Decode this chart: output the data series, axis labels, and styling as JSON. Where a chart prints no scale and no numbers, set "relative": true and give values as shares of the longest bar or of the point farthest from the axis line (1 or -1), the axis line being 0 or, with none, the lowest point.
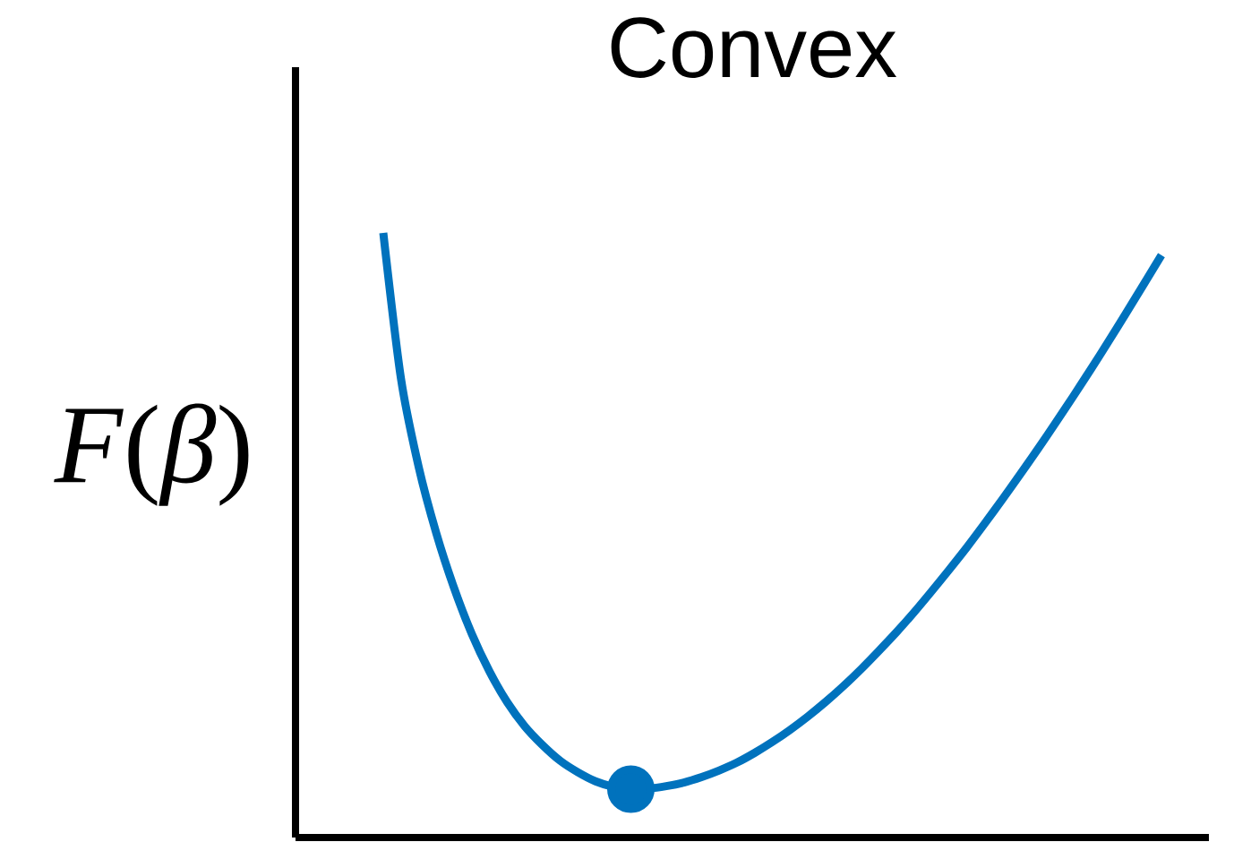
{
  "chart_data": {
    "type": "line",
    "title": "Convex",
    "ylabel": "*F*(*β*)",
    "relative": true,
    "categories": [
      null,
      null,
      null,
      null,
      null,
      null,
      null,
      null,
      null,
      null,
      null,
      null,
      null,
      null,
      null,
      null,
      null,
      null,
      null,
      null,
      null,
      null,
      null,
      null,
      null,
      null,
      null,
      null,
      null,
      null,
      null,
      null,
      null,
      null,
      null,
      null,
      null,
      null,
      null,
      null,
      null,
      null,
      null,
      null,
      null
    ],
    "series": [
      {
        "color": "#0072bd",
        "marker": "circle",
        "values": [
          null,
          null,
          null,
          null,
          null,
          null,
          null,
          null,
          null,
          null,
          null,
          null,
          null,
          null,
          0.08,
          null,
          null,
          null,
          null,
          null,
          null,
          null,
          null,
          null,
          null,
          null,
          null,
          null,
          null,
          null,
          null,
          null,
          null,
          null,
          null,
          null,
          null,
          null,
          null,
          null,
          null,
          null,
          null,
          null,
          null
        ]
      },
      {
        "color": "#0072bd",
        "values": [
          1.0,
          0.759,
          0.613,
          0.503,
          0.413,
          0.337,
          0.275,
          0.224,
          0.184,
          0.153,
          0.127,
          0.108,
          0.093,
          0.084,
          0.08,
          0.081,
          0.085,
          0.091,
          0.1,
          0.111,
          0.124,
          0.14,
          0.158,
          0.178,
          0.2,
          0.224,
          0.25,
          0.278,
          0.308,
          0.339,
          0.372,
          0.407,
          0.443,
          0.48,
          0.519,
          0.559,
          0.6,
          0.642,
          0.685,
          0.729,
          0.774,
          0.82,
          0.867,
          0.915,
          0.963
        ]
      }
    ]
  }
}
